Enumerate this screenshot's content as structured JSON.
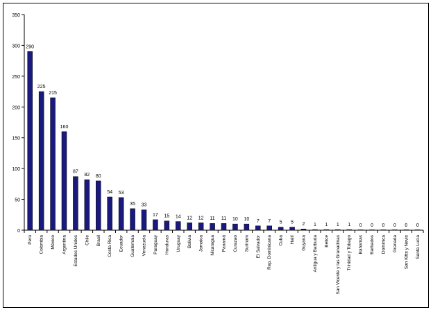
{
  "chart_data": {
    "type": "bar",
    "title": "",
    "xlabel": "",
    "ylabel": "",
    "ylim": [
      0,
      350
    ],
    "yticks": [
      0,
      50,
      100,
      150,
      200,
      250,
      300,
      350
    ],
    "grid": false,
    "legend": "none",
    "bar_color": "#1a1a7e",
    "categories": [
      "Perú",
      "Colombia",
      "México",
      "Argentina",
      "Estados Unidos",
      "Chile",
      "Brasil",
      "Costa Rica",
      "Ecuador",
      "Guatemala",
      "Venezuela",
      "Paraguay",
      "Honduras",
      "Uruguay",
      "Bolivia",
      "Jamaica",
      "Nicaragua",
      "Panamá",
      "Curazao",
      "Surinam",
      "El Salvador",
      "Rep. Dominicana",
      "Cuba",
      "Haití",
      "Guyana",
      "Antigua y Barbuda",
      "Belice",
      "San Vicente y las Granadinas",
      "Trinidad y Tobago",
      "Bahamas",
      "Barbados",
      "Dominica",
      "Granada",
      "San Kitts y Nevis",
      "Santa Lucía"
    ],
    "values": [
      290,
      225,
      215,
      160,
      87,
      82,
      80,
      54,
      53,
      35,
      33,
      17,
      15,
      14,
      12,
      12,
      11,
      11,
      10,
      10,
      7,
      7,
      5,
      5,
      2,
      1,
      1,
      1,
      1,
      0,
      0,
      0,
      0,
      0,
      0
    ]
  }
}
